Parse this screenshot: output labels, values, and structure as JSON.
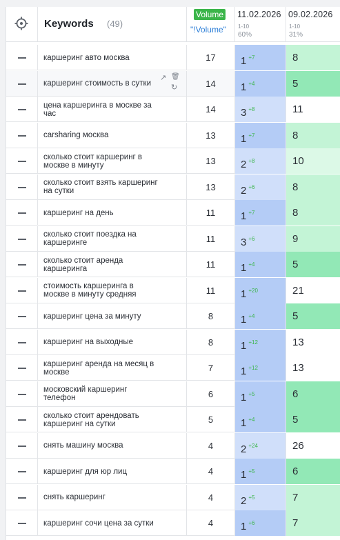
{
  "header": {
    "keywords_label": "Keywords",
    "keywords_count": "(49)",
    "volume_badge": "Volume",
    "volume_sub": "\"!Volume\"",
    "dates": [
      {
        "date": "11.02.2026",
        "range": "1-10",
        "pct": "60%"
      },
      {
        "date": "09.02.2026",
        "range": "1-10",
        "pct": "31%"
      }
    ]
  },
  "colors": {
    "pos1_blue_strong": "#b4ccf6",
    "pos_blue_light": "#d0dffa",
    "green_strong": "#92e8b6",
    "green_light": "#c3f4d6",
    "green_pale": "#dcf9e7",
    "white": "#ffffff",
    "change_green": "#3bb54a",
    "volume_badge": "#3bb54a"
  },
  "rows": [
    {
      "keyword": "каршеринг авто москва",
      "volume": "17",
      "pos1": "1",
      "change": "+7",
      "pos2": "8"
    },
    {
      "keyword": "каршеринг стоимость в сутки",
      "volume": "14",
      "pos1": "1",
      "change": "+4",
      "pos2": "5"
    },
    {
      "keyword": "цена каршеринга в москве за час",
      "volume": "14",
      "pos1": "3",
      "change": "+8",
      "pos2": "11"
    },
    {
      "keyword": "carsharing москва",
      "volume": "13",
      "pos1": "1",
      "change": "+7",
      "pos2": "8"
    },
    {
      "keyword": "сколько стоит каршеринг в москве в минуту",
      "volume": "13",
      "pos1": "2",
      "change": "+8",
      "pos2": "10"
    },
    {
      "keyword": "сколько стоит взять каршеринг на сутки",
      "volume": "13",
      "pos1": "2",
      "change": "+6",
      "pos2": "8"
    },
    {
      "keyword": "каршеринг на день",
      "volume": "11",
      "pos1": "1",
      "change": "+7",
      "pos2": "8"
    },
    {
      "keyword": "сколько стоит поездка на каршеринге",
      "volume": "11",
      "pos1": "3",
      "change": "+6",
      "pos2": "9"
    },
    {
      "keyword": "сколько стоит аренда каршеринга",
      "volume": "11",
      "pos1": "1",
      "change": "+4",
      "pos2": "5"
    },
    {
      "keyword": "стоимость каршеринга в москве в минуту средняя",
      "volume": "11",
      "pos1": "1",
      "change": "+20",
      "pos2": "21"
    },
    {
      "keyword": "каршеринг цена за минуту",
      "volume": "8",
      "pos1": "1",
      "change": "+4",
      "pos2": "5"
    },
    {
      "keyword": "каршеринг на выходные",
      "volume": "8",
      "pos1": "1",
      "change": "+12",
      "pos2": "13"
    },
    {
      "keyword": "каршеринг аренда на месяц в москве",
      "volume": "7",
      "pos1": "1",
      "change": "+12",
      "pos2": "13"
    },
    {
      "keyword": "московский каршеринг телефон",
      "volume": "6",
      "pos1": "1",
      "change": "+5",
      "pos2": "6"
    },
    {
      "keyword": "сколько стоит арендовать каршеринг на сутки",
      "volume": "5",
      "pos1": "1",
      "change": "+4",
      "pos2": "5"
    },
    {
      "keyword": "снять машину москва",
      "volume": "4",
      "pos1": "2",
      "change": "+24",
      "pos2": "26"
    },
    {
      "keyword": "каршеринг для юр лиц",
      "volume": "4",
      "pos1": "1",
      "change": "+5",
      "pos2": "6"
    },
    {
      "keyword": "снять каршеринг",
      "volume": "4",
      "pos1": "2",
      "change": "+5",
      "pos2": "7"
    },
    {
      "keyword": "каршеринг сочи цена за сутки",
      "volume": "4",
      "pos1": "1",
      "change": "+6",
      "pos2": "7"
    }
  ]
}
